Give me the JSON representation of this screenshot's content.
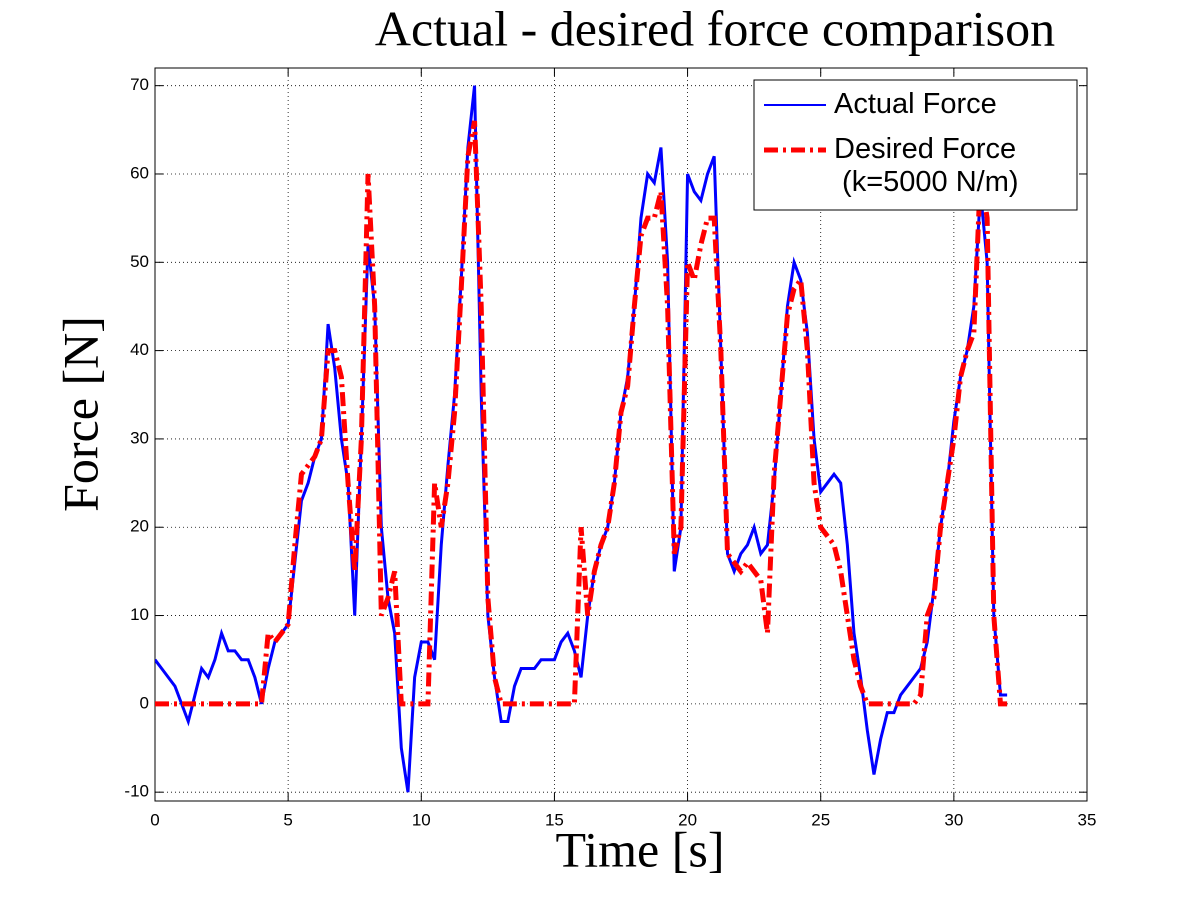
{
  "chart_data": {
    "type": "line",
    "title": "Actual - desired force comparison",
    "x_label": "Time [s]",
    "y_label": "Force [N]",
    "x": [
      0,
      0.25,
      0.5,
      0.75,
      1,
      1.25,
      1.5,
      1.75,
      2,
      2.25,
      2.5,
      2.75,
      3,
      3.25,
      3.5,
      3.75,
      4,
      4.25,
      4.5,
      4.75,
      5,
      5.25,
      5.5,
      5.75,
      6,
      6.25,
      6.5,
      6.75,
      7,
      7.25,
      7.5,
      7.75,
      8,
      8.25,
      8.5,
      8.75,
      9,
      9.25,
      9.5,
      9.75,
      10,
      10.25,
      10.5,
      10.75,
      11,
      11.25,
      11.5,
      11.75,
      12,
      12.25,
      12.5,
      12.75,
      13,
      13.25,
      13.5,
      13.75,
      14,
      14.25,
      14.5,
      14.75,
      15,
      15.25,
      15.5,
      15.75,
      16,
      16.25,
      16.5,
      16.75,
      17,
      17.25,
      17.5,
      17.75,
      18,
      18.25,
      18.5,
      18.75,
      19,
      19.25,
      19.5,
      19.75,
      20,
      20.25,
      20.5,
      20.75,
      21,
      21.25,
      21.5,
      21.75,
      22,
      22.25,
      22.5,
      22.75,
      23,
      23.25,
      23.5,
      23.75,
      24,
      24.25,
      24.5,
      24.75,
      25,
      25.25,
      25.5,
      25.75,
      26,
      26.25,
      26.5,
      26.75,
      27,
      27.25,
      27.5,
      27.75,
      28,
      28.25,
      28.5,
      28.75,
      29,
      29.25,
      29.5,
      29.75,
      30,
      30.25,
      30.5,
      30.75,
      31,
      31.25,
      31.5,
      31.75,
      32
    ],
    "series": [
      {
        "name": "Actual Force",
        "color": "#0000ff",
        "dash": false,
        "values": [
          5,
          4,
          3,
          2,
          0,
          -2,
          1,
          4,
          3,
          5,
          8,
          6,
          6,
          5,
          5,
          3,
          0,
          4,
          7,
          8,
          9,
          16,
          23,
          25,
          28,
          30,
          43,
          38,
          30,
          25,
          10,
          30,
          52,
          45,
          20,
          12,
          8,
          -5,
          -10,
          3,
          7,
          7,
          5,
          18,
          27,
          35,
          48,
          63,
          70,
          35,
          10,
          3,
          -2,
          -2,
          2,
          4,
          4,
          4,
          5,
          5,
          5,
          7,
          8,
          6,
          3,
          10,
          15,
          18,
          20,
          25,
          33,
          37,
          45,
          55,
          60,
          59,
          63,
          50,
          15,
          20,
          60,
          58,
          57,
          60,
          62,
          40,
          17,
          15,
          17,
          18,
          20,
          17,
          18,
          25,
          35,
          45,
          50,
          48,
          42,
          30,
          24,
          25,
          26,
          25,
          18,
          8,
          3,
          -3,
          -8,
          -4,
          -1,
          -1,
          1,
          2,
          3,
          4,
          7,
          13,
          20,
          25,
          32,
          37,
          40,
          45,
          58,
          50,
          10,
          1,
          1
        ]
      },
      {
        "name": "Desired Force\n (k=5000 N/m)",
        "color": "#ff0000",
        "dash": true,
        "values": [
          0,
          0,
          0,
          0,
          0,
          0,
          0,
          0,
          0,
          0,
          0,
          0,
          0,
          0,
          0,
          0,
          0,
          8,
          7,
          8,
          9,
          18,
          26,
          27,
          28,
          30,
          40,
          40,
          37,
          25,
          15,
          30,
          60,
          45,
          10,
          12,
          15,
          0,
          0,
          0,
          0,
          0,
          25,
          20,
          25,
          33,
          47,
          62,
          66,
          45,
          12,
          3,
          0,
          0,
          0,
          0,
          0,
          0,
          0,
          0,
          0,
          0,
          0,
          0,
          20,
          10,
          15,
          18,
          20,
          25,
          33,
          36,
          45,
          53,
          55,
          55,
          58,
          45,
          17,
          20,
          50,
          48,
          52,
          55,
          55,
          40,
          17,
          16,
          15,
          16,
          15,
          14,
          8,
          26,
          35,
          44,
          47,
          48,
          40,
          25,
          20,
          19,
          18,
          15,
          10,
          5,
          2,
          0,
          0,
          0,
          0,
          0,
          0,
          0,
          0,
          1,
          10,
          12,
          20,
          25,
          30,
          37,
          40,
          42,
          60,
          55,
          10,
          0,
          0
        ]
      }
    ],
    "xlim": [
      0,
      35
    ],
    "xticks": [
      0,
      5,
      10,
      15,
      20,
      25,
      30,
      35
    ],
    "ylim": [
      -11,
      72
    ],
    "yticks": [
      -10,
      0,
      10,
      20,
      30,
      40,
      50,
      60,
      70
    ],
    "grid": true,
    "legend": "upper right"
  }
}
